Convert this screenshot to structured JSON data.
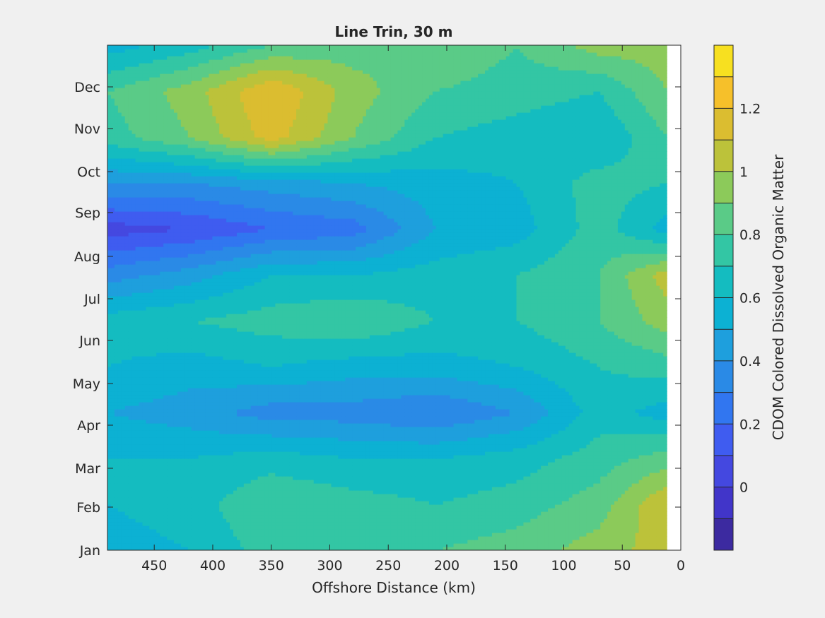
{
  "chart_data": {
    "type": "heatmap",
    "subtype": "filled-contour",
    "title": "Line Trin, 30 m",
    "xlabel": "Offshore Distance (km)",
    "ylabel": "",
    "x_reversed": true,
    "xlim": [
      0,
      490
    ],
    "x_ticks": [
      450,
      400,
      350,
      300,
      250,
      200,
      150,
      100,
      50,
      0
    ],
    "y_ticks": [
      "Jan",
      "Feb",
      "Mar",
      "Apr",
      "May",
      "Jun",
      "Jul",
      "Aug",
      "Sep",
      "Oct",
      "Nov",
      "Dec"
    ],
    "x_grid": [
      490,
      420,
      350,
      280,
      210,
      140,
      70,
      12
    ],
    "y_grid": [
      "Jan",
      "Feb",
      "Mar",
      "Apr",
      "May",
      "Jun",
      "Jul",
      "Aug",
      "Sep",
      "Oct",
      "Nov",
      "Dec"
    ],
    "z": [
      [
        0.55,
        0.6,
        0.75,
        0.7,
        0.8,
        0.85,
        0.95,
        1.05
      ],
      [
        0.6,
        0.65,
        0.8,
        0.75,
        0.7,
        0.75,
        0.85,
        1.1
      ],
      [
        0.6,
        0.6,
        0.65,
        0.6,
        0.6,
        0.65,
        0.75,
        0.85
      ],
      [
        0.5,
        0.45,
        0.35,
        0.35,
        0.3,
        0.4,
        0.65,
        0.55
      ],
      [
        0.6,
        0.55,
        0.6,
        0.55,
        0.55,
        0.6,
        0.7,
        0.75
      ],
      [
        0.65,
        0.7,
        0.75,
        0.8,
        0.7,
        0.7,
        0.8,
        0.95
      ],
      [
        0.35,
        0.45,
        0.6,
        0.6,
        0.65,
        0.7,
        0.8,
        1.05
      ],
      [
        0.05,
        0.1,
        0.2,
        0.25,
        0.5,
        0.55,
        0.75,
        0.55
      ],
      [
        0.4,
        0.4,
        0.45,
        0.5,
        0.55,
        0.6,
        0.75,
        0.7
      ],
      [
        0.75,
        0.9,
        1.15,
        0.9,
        0.7,
        0.65,
        0.6,
        0.8
      ],
      [
        0.8,
        0.95,
        1.2,
        0.95,
        0.8,
        0.75,
        0.7,
        0.9
      ],
      [
        0.55,
        0.65,
        0.8,
        0.85,
        0.9,
        0.8,
        0.95,
        0.95
      ]
    ],
    "colorbar": {
      "label": "CDOM Colored Dissolved Organic Matter",
      "range": [
        -0.2,
        1.4
      ],
      "ticks": [
        0,
        0.2,
        0.4,
        0.6,
        0.8,
        1,
        1.2
      ],
      "tick_labels": [
        "0",
        "0.2",
        "0.4",
        "0.6",
        "0.8",
        "1",
        "1.2"
      ],
      "levels": [
        -0.2,
        -0.1,
        0.0,
        0.1,
        0.2,
        0.3,
        0.4,
        0.5,
        0.6,
        0.7,
        0.8,
        0.9,
        1.0,
        1.1,
        1.2,
        1.3,
        1.4
      ],
      "colors": [
        "#3c2aa0",
        "#4135c9",
        "#4448e0",
        "#3f5cf0",
        "#3176f0",
        "#2a8ae6",
        "#1e9fdd",
        "#0cb1d3",
        "#14bcc0",
        "#33c6a4",
        "#5acb87",
        "#8cca5a",
        "#bcc23a",
        "#dbbd30",
        "#f6c02a",
        "#f7e020"
      ]
    },
    "grid": false,
    "legend": "none",
    "background_color": "#f0f0f0"
  }
}
